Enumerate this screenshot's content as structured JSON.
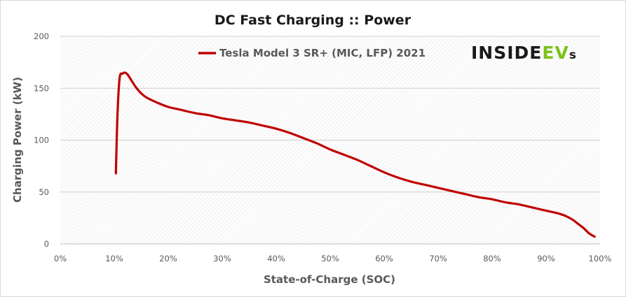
{
  "chart_data": {
    "type": "line",
    "title": "DC Fast Charging :: Power",
    "xlabel": "State-of-Charge  (SOC)",
    "ylabel": "Charging Power (kW)",
    "xlim": [
      0,
      100
    ],
    "ylim": [
      0,
      200
    ],
    "x_ticks": [
      0,
      10,
      20,
      30,
      40,
      50,
      60,
      70,
      80,
      90,
      100
    ],
    "x_tick_labels": [
      "0%",
      "10%",
      "20%",
      "30%",
      "40%",
      "50%",
      "60%",
      "70%",
      "80%",
      "90%",
      "100%"
    ],
    "y_ticks": [
      0,
      50,
      100,
      150,
      200
    ],
    "y_tick_labels": [
      "0",
      "50",
      "100",
      "150",
      "200"
    ],
    "grid": "horizontal",
    "legend_position": "top",
    "series": [
      {
        "name": "Tesla Model 3 SR+ (MIC, LFP) 2021",
        "color": "#c00000",
        "x": [
          10.3,
          10.6,
          11.0,
          11.5,
          12.0,
          12.5,
          13.0,
          14.0,
          15.0,
          16.0,
          18.0,
          20.0,
          22.5,
          25.0,
          27.5,
          30.0,
          32.5,
          35.0,
          37.5,
          40.0,
          42.5,
          45.0,
          47.5,
          50.0,
          52.5,
          55.0,
          57.5,
          60.0,
          62.5,
          65.0,
          67.5,
          70.0,
          72.5,
          75.0,
          77.5,
          80.0,
          82.5,
          85.0,
          87.5,
          90.0,
          92.5,
          94.0,
          95.0,
          96.0,
          97.0,
          98.0,
          99.0
        ],
        "y": [
          68,
          125,
          160,
          164,
          165,
          163,
          159,
          151,
          145,
          141,
          136,
          132,
          129,
          126,
          124,
          121,
          119,
          117,
          114,
          111,
          107,
          102,
          97,
          91,
          86,
          81,
          75,
          69,
          64,
          60,
          57,
          54,
          51,
          48,
          45,
          43,
          40,
          38,
          35,
          32,
          29,
          26,
          23,
          19,
          15,
          10,
          7
        ]
      }
    ]
  },
  "logo": {
    "part1": "INSIDE",
    "part2": "EV",
    "part3": "s",
    "color_dark": "#1a1a1a",
    "color_green": "#7cc21a"
  }
}
